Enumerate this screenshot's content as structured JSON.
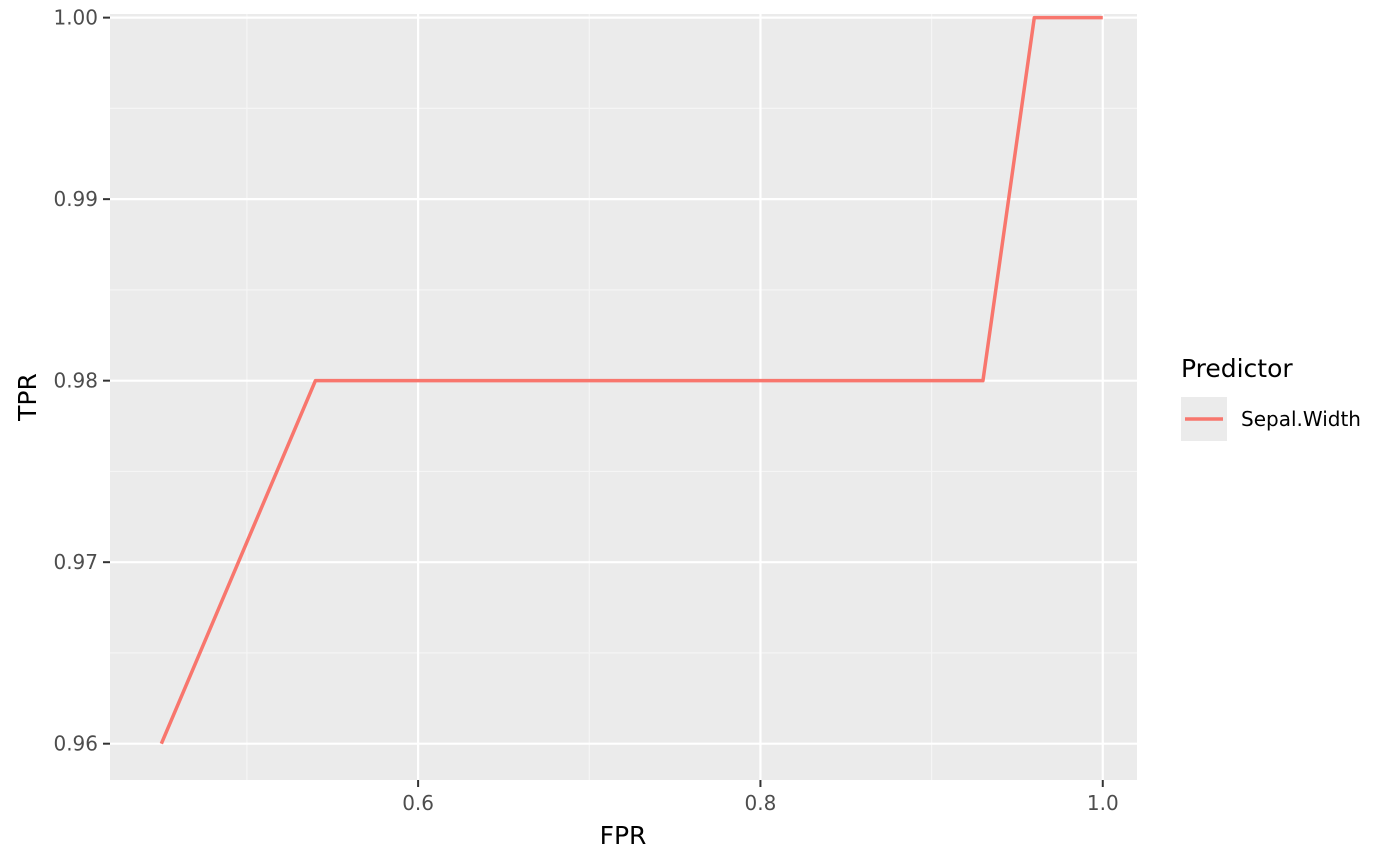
{
  "chart_data": {
    "type": "line",
    "title": "",
    "xlabel": "FPR",
    "ylabel": "TPR",
    "xlim": [
      0.42,
      1.02
    ],
    "ylim": [
      0.958,
      1.0002
    ],
    "x_ticks": [
      0.6,
      0.8,
      1.0
    ],
    "x_tick_labels": [
      "0.6",
      "0.8",
      "1.0"
    ],
    "y_ticks": [
      0.96,
      0.97,
      0.98,
      0.99,
      1.0
    ],
    "y_tick_labels": [
      "0.96",
      "0.97",
      "0.98",
      "0.99",
      "1.00"
    ],
    "grid": true,
    "legend": {
      "title": "Predictor",
      "placement": "right"
    },
    "series": [
      {
        "name": "Sepal.Width",
        "color": "#F8766D",
        "x": [
          0.45,
          0.54,
          0.93,
          0.96,
          1.0
        ],
        "y": [
          0.96,
          0.98,
          0.98,
          1.0,
          1.0
        ]
      }
    ]
  },
  "colors": {
    "panel_background": "#EBEBEB",
    "grid_major": "#FFFFFF",
    "grid_minor": "#F5F5F5",
    "tick_text": "#4D4D4D",
    "tick_mark": "#333333"
  }
}
